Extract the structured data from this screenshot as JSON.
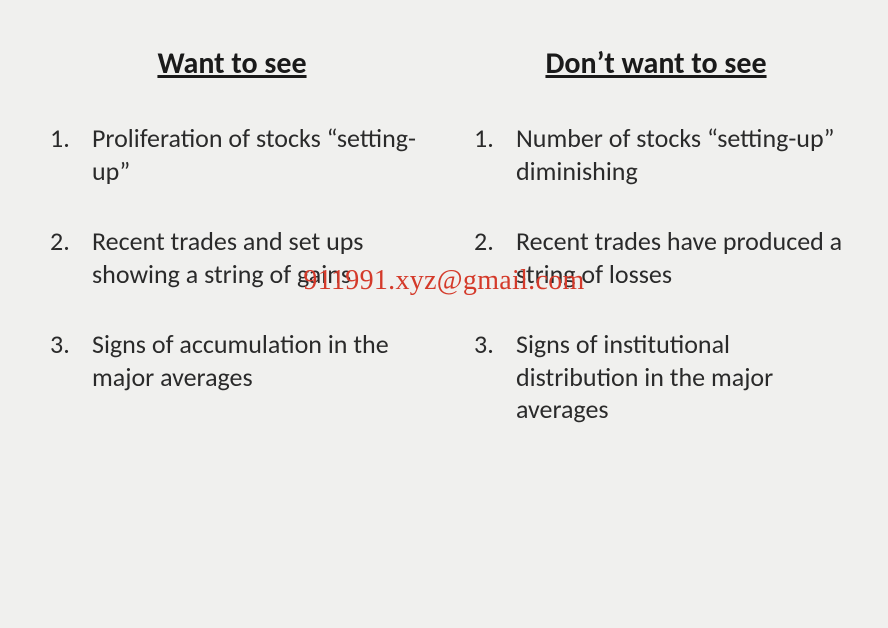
{
  "background_color": "#f0f0ee",
  "text_color": "#2a2a2a",
  "heading_color": "#1a1a1a",
  "heading_fontsize": 30,
  "body_fontsize": 26,
  "columns": {
    "left": {
      "heading": "Want to see",
      "items": [
        "Proliferation of stocks “setting-up”",
        "Recent trades and set ups showing a string of gains",
        "Signs of accumulation in the major averages"
      ]
    },
    "right": {
      "heading": "Don’t want to see",
      "items": [
        "Number of stocks “setting-up” diminishing",
        "Recent trades have produced a string of losses",
        "Signs of institutional distribution in the major averages"
      ]
    }
  },
  "watermark": {
    "text": "911991.xyz@gmail.com",
    "color": "#d43a2a",
    "fontsize": 28
  }
}
